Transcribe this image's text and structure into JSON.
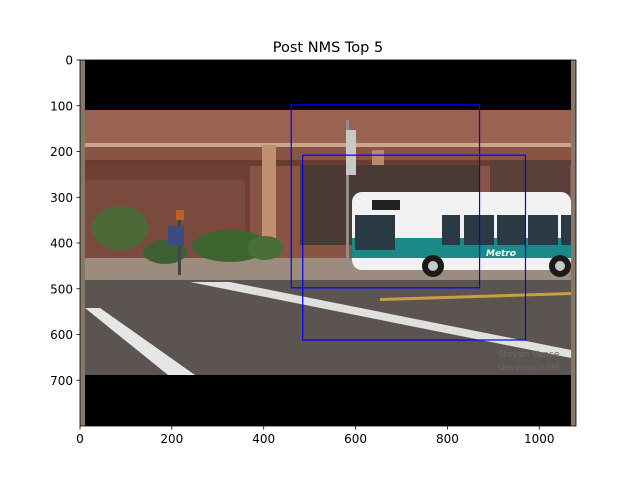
{
  "chart_data": {
    "type": "image",
    "title": "Post NMS Top 5",
    "image_size": [
      1080,
      800
    ],
    "xlim": [
      0,
      1080
    ],
    "ylim": [
      800,
      0
    ],
    "x_ticks": [
      0,
      200,
      400,
      600,
      800,
      1000
    ],
    "y_ticks": [
      0,
      100,
      200,
      300,
      400,
      500,
      600,
      700
    ],
    "box_color": "#0000ff",
    "boxes": [
      {
        "x1": 460,
        "y1": 98,
        "x2": 870,
        "y2": 498
      },
      {
        "x1": 485,
        "y1": 208,
        "x2": 970,
        "y2": 612
      }
    ],
    "watermark": [
      "Steven Vance",
      "stevevance.net"
    ],
    "bus_route_label": "Metro"
  }
}
